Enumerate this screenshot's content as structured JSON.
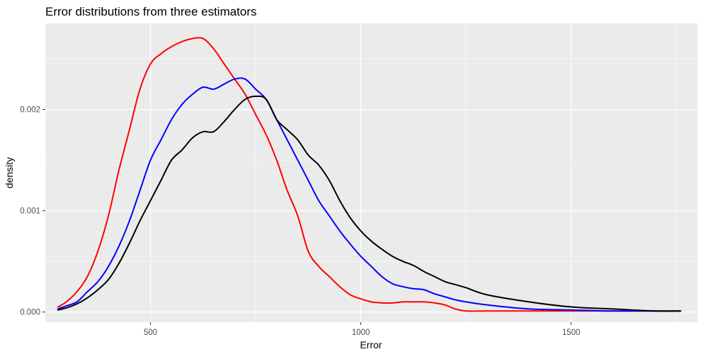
{
  "chart_data": {
    "type": "line",
    "title": "Error distributions from three estimators",
    "xlabel": "Error",
    "ylabel": "density",
    "xlim": [
      250,
      1800
    ],
    "ylim": [
      -0.0001,
      0.00285
    ],
    "x_ticks": [
      500,
      1000,
      1500
    ],
    "x_minor_ticks": [
      250,
      750,
      1250,
      1750
    ],
    "y_ticks": [
      0.0,
      0.001,
      0.002
    ],
    "y_minor_ticks": [
      0.0005,
      0.0015,
      0.0025
    ],
    "x_tick_labels": [
      "500",
      "1000",
      "1500"
    ],
    "y_tick_labels": [
      "0.000",
      "0.001",
      "0.002"
    ],
    "grid": true,
    "legend": "none",
    "colors": {
      "panel_background": "#ebebeb",
      "grid": "#ffffff",
      "red": "#ff0000",
      "blue": "#0000ff",
      "black": "#000000"
    },
    "series": [
      {
        "color": "#ff0000",
        "x": [
          280,
          300,
          325,
          350,
          375,
          400,
          425,
          450,
          475,
          500,
          525,
          550,
          575,
          600,
          625,
          650,
          675,
          700,
          725,
          750,
          775,
          800,
          825,
          850,
          875,
          900,
          925,
          950,
          975,
          1000,
          1025,
          1050,
          1075,
          1100,
          1125,
          1150,
          1175,
          1200,
          1225,
          1250,
          1300,
          1400,
          1500,
          1600,
          1700,
          1760
        ],
        "y": [
          5e-05,
          0.0001,
          0.0002,
          0.00035,
          0.0006,
          0.00095,
          0.0014,
          0.0018,
          0.0022,
          0.00245,
          0.00255,
          0.00262,
          0.00267,
          0.0027,
          0.0027,
          0.0026,
          0.00245,
          0.0023,
          0.00215,
          0.00195,
          0.00175,
          0.0015,
          0.0012,
          0.00095,
          0.0006,
          0.00045,
          0.00035,
          0.00025,
          0.00017,
          0.00013,
          0.0001,
          9e-05,
          9e-05,
          0.0001,
          0.0001,
          0.0001,
          9e-05,
          7e-05,
          3e-05,
          1e-05,
          1e-05,
          1e-05,
          1e-05,
          1e-05,
          1e-05,
          1e-05
        ]
      },
      {
        "color": "#0000ff",
        "x": [
          280,
          300,
          325,
          350,
          375,
          400,
          425,
          450,
          475,
          500,
          525,
          550,
          575,
          600,
          625,
          650,
          675,
          700,
          725,
          750,
          775,
          800,
          825,
          850,
          875,
          900,
          925,
          950,
          975,
          1000,
          1025,
          1050,
          1075,
          1100,
          1125,
          1150,
          1175,
          1200,
          1225,
          1250,
          1300,
          1400,
          1500,
          1600,
          1700,
          1760
        ],
        "y": [
          3e-05,
          6e-05,
          0.0001,
          0.0002,
          0.0003,
          0.00045,
          0.00065,
          0.0009,
          0.0012,
          0.0015,
          0.0017,
          0.0019,
          0.00205,
          0.00215,
          0.00222,
          0.0022,
          0.00225,
          0.0023,
          0.0023,
          0.0022,
          0.0021,
          0.0019,
          0.0017,
          0.0015,
          0.0013,
          0.0011,
          0.00095,
          0.0008,
          0.00067,
          0.00055,
          0.00045,
          0.00035,
          0.00028,
          0.00025,
          0.00023,
          0.00022,
          0.00018,
          0.00015,
          0.00012,
          0.0001,
          7e-05,
          3e-05,
          2e-05,
          1e-05,
          1e-05,
          1e-05
        ]
      },
      {
        "color": "#000000",
        "x": [
          280,
          300,
          325,
          350,
          375,
          400,
          425,
          450,
          475,
          500,
          525,
          550,
          575,
          600,
          625,
          650,
          675,
          700,
          725,
          750,
          775,
          800,
          825,
          850,
          875,
          900,
          925,
          950,
          975,
          1000,
          1025,
          1050,
          1075,
          1100,
          1125,
          1150,
          1175,
          1200,
          1225,
          1250,
          1300,
          1400,
          1500,
          1600,
          1700,
          1760
        ],
        "y": [
          2e-05,
          4e-05,
          8e-05,
          0.00014,
          0.00022,
          0.00032,
          0.00048,
          0.00068,
          0.0009,
          0.0011,
          0.0013,
          0.0015,
          0.0016,
          0.00172,
          0.00178,
          0.00178,
          0.00188,
          0.002,
          0.0021,
          0.00213,
          0.0021,
          0.0019,
          0.0018,
          0.0017,
          0.00155,
          0.00145,
          0.0013,
          0.0011,
          0.00093,
          0.0008,
          0.0007,
          0.00062,
          0.00055,
          0.0005,
          0.00046,
          0.0004,
          0.00035,
          0.0003,
          0.00027,
          0.00024,
          0.00017,
          0.0001,
          5e-05,
          3e-05,
          1e-05,
          1e-05
        ]
      }
    ]
  }
}
